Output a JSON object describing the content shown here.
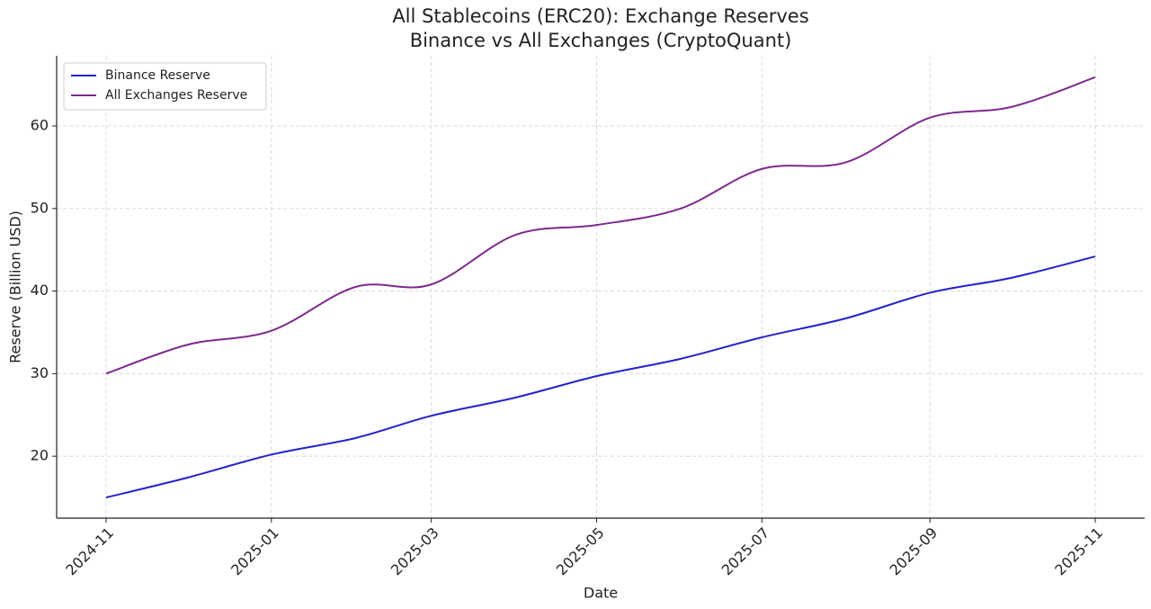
{
  "chart_data": {
    "type": "line",
    "title": "All Stablecoins (ERC20): Exchange Reserves",
    "subtitle": "Binance vs All Exchanges (CryptoQuant)",
    "x_label": "Date",
    "y_label": "Reserve (Billion USD)",
    "x": [
      "2024-11",
      "2024-12",
      "2025-01",
      "2025-02",
      "2025-03",
      "2025-04",
      "2025-05",
      "2025-06",
      "2025-07",
      "2025-08",
      "2025-09",
      "2025-10",
      "2025-11"
    ],
    "series": [
      {
        "name": "Binance Reserve",
        "color": "#2222cc",
        "values": [
          15,
          17.4,
          20.2,
          22.2,
          24.9,
          27.1,
          29.7,
          31.8,
          34.4,
          36.7,
          39.8,
          41.6,
          44.2
        ]
      },
      {
        "name": "All Exchanges Reserve",
        "color": "#7e2a8e",
        "values": [
          30,
          33.5,
          35.2,
          40.5,
          40.8,
          46.8,
          48.0,
          50.0,
          54.8,
          55.6,
          61.0,
          62.3,
          65.9
        ]
      }
    ],
    "xlim": [
      "2024-11",
      "2025-11"
    ],
    "xticks": [
      "2024-11",
      "2025-01",
      "2025-03",
      "2025-05",
      "2025-07",
      "2025-09",
      "2025-11"
    ],
    "ylim": [
      12.5,
      68.5
    ],
    "yticks": [
      20,
      30,
      40,
      50,
      60
    ],
    "grid": true,
    "legend": "upper left"
  }
}
